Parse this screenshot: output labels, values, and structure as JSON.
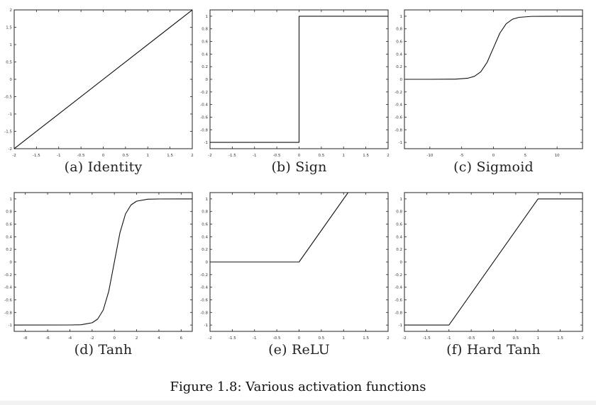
{
  "figure_caption": "Figure 1.8: Various activation functions",
  "chart_data": [
    {
      "type": "line",
      "caption": "(a) Identity",
      "function": "identity",
      "xlim": [
        -2,
        2
      ],
      "ylim": [
        -2,
        2
      ],
      "xticks": [
        -2,
        -1.5,
        -1,
        -0.5,
        0,
        0.5,
        1,
        1.5,
        2
      ],
      "yticks": [
        -2,
        -1.5,
        -1,
        -0.5,
        0,
        0.5,
        1,
        1.5,
        2
      ],
      "xtick_labels": [
        "-2",
        "-1.5",
        "-1",
        "-0.5",
        "0",
        "0.5",
        "1",
        "1.5",
        "2"
      ],
      "ytick_labels": [
        "-2",
        "-1.5",
        "-1",
        "-0.5",
        "0",
        "0.5",
        "1",
        "1.5",
        "2"
      ],
      "grid": false,
      "series": [
        {
          "x": [
            -2,
            2
          ],
          "y": [
            -2,
            2
          ]
        }
      ]
    },
    {
      "type": "line",
      "caption": "(b) Sign",
      "function": "sign",
      "xlim": [
        -2,
        2
      ],
      "ylim": [
        -1.1,
        1.1
      ],
      "xticks": [
        -2,
        -1.5,
        -1,
        -0.5,
        0,
        0.5,
        1,
        1.5,
        2
      ],
      "yticks": [
        -1,
        -0.8,
        -0.6,
        -0.4,
        -0.2,
        0,
        0.2,
        0.4,
        0.6,
        0.8,
        1
      ],
      "xtick_labels": [
        "-2",
        "-1.5",
        "-1",
        "-0.5",
        "0",
        "0.5",
        "1",
        "1.5",
        "2"
      ],
      "ytick_labels": [
        "-1",
        "-0.8",
        "-0.6",
        "-0.4",
        "-0.2",
        "0",
        "0.2",
        "0.4",
        "0.6",
        "0.8",
        "1"
      ],
      "grid": false,
      "series": [
        {
          "x": [
            -2,
            0,
            0,
            2
          ],
          "y": [
            -1,
            -1,
            1,
            1
          ]
        }
      ]
    },
    {
      "type": "line",
      "caption": "(c) Sigmoid",
      "function": "sigmoid",
      "xlim": [
        -14,
        14
      ],
      "ylim": [
        -1.1,
        1.1
      ],
      "xticks": [
        -10,
        -5,
        0,
        5,
        10
      ],
      "yticks": [
        -1,
        -0.8,
        -0.6,
        -0.4,
        -0.2,
        0,
        0.2,
        0.4,
        0.6,
        0.8,
        1
      ],
      "xtick_labels": [
        "-10",
        "-5",
        "0",
        "5",
        "10"
      ],
      "ytick_labels": [
        "-1",
        "-0.8",
        "-0.6",
        "-0.4",
        "-0.2",
        "0",
        "0.2",
        "0.4",
        "0.6",
        "0.8",
        "1"
      ],
      "grid": false,
      "series": [
        {
          "x": [
            -14,
            -10,
            -6,
            -4,
            -3,
            -2,
            -1,
            0,
            1,
            2,
            3,
            4,
            6,
            10,
            14
          ],
          "y": [
            0,
            4.54e-05,
            0.00247,
            0.018,
            0.047,
            0.119,
            0.269,
            0.5,
            0.731,
            0.881,
            0.953,
            0.982,
            0.9975,
            0.99995,
            1
          ]
        }
      ]
    },
    {
      "type": "line",
      "caption": "(d) Tanh",
      "function": "tanh",
      "xlim": [
        -9,
        7
      ],
      "ylim": [
        -1.1,
        1.1
      ],
      "xticks": [
        -8,
        -6,
        -4,
        -2,
        0,
        2,
        4,
        6
      ],
      "yticks": [
        -1,
        -0.8,
        -0.6,
        -0.4,
        -0.2,
        0,
        0.2,
        0.4,
        0.6,
        0.8,
        1
      ],
      "xtick_labels": [
        "-8",
        "-6",
        "-4",
        "-2",
        "0",
        "2",
        "4",
        "6"
      ],
      "ytick_labels": [
        "-1",
        "-0.8",
        "-0.6",
        "-0.4",
        "-0.2",
        "0",
        "0.2",
        "0.4",
        "0.6",
        "0.8",
        "1"
      ],
      "grid": false,
      "series": [
        {
          "x": [
            -9,
            -4,
            -3,
            -2,
            -1.5,
            -1,
            -0.5,
            0,
            0.5,
            1,
            1.5,
            2,
            3,
            4,
            7
          ],
          "y": [
            -1,
            -0.999,
            -0.995,
            -0.964,
            -0.905,
            -0.762,
            -0.462,
            0,
            0.462,
            0.762,
            0.905,
            0.964,
            0.995,
            0.999,
            1
          ]
        }
      ]
    },
    {
      "type": "line",
      "caption": "(e) ReLU",
      "function": "relu",
      "xlim": [
        -2,
        2
      ],
      "ylim": [
        -1.1,
        1.1
      ],
      "xticks": [
        -2,
        -1.5,
        -1,
        -0.5,
        0,
        0.5,
        1,
        1.5,
        2
      ],
      "yticks": [
        -1,
        -0.8,
        -0.6,
        -0.4,
        -0.2,
        0,
        0.2,
        0.4,
        0.6,
        0.8,
        1
      ],
      "xtick_labels": [
        "-2",
        "-1.5",
        "-1",
        "-0.5",
        "0",
        "0.5",
        "1",
        "1.5",
        "2"
      ],
      "ytick_labels": [
        "-1",
        "-0.8",
        "-0.6",
        "-0.4",
        "-0.2",
        "0",
        "0.2",
        "0.4",
        "0.6",
        "0.8",
        "1"
      ],
      "grid": false,
      "series": [
        {
          "x": [
            -2,
            0,
            1.1
          ],
          "y": [
            0,
            0,
            1.1
          ]
        }
      ]
    },
    {
      "type": "line",
      "caption": "(f) Hard Tanh",
      "function": "hardtanh",
      "xlim": [
        -2,
        2
      ],
      "ylim": [
        -1.1,
        1.1
      ],
      "xticks": [
        -2,
        -1.5,
        -1,
        -0.5,
        0,
        0.5,
        1,
        1.5,
        2
      ],
      "yticks": [
        -1,
        -0.8,
        -0.6,
        -0.4,
        -0.2,
        0,
        0.2,
        0.4,
        0.6,
        0.8,
        1
      ],
      "xtick_labels": [
        "-2",
        "-1.5",
        "-1",
        "-0.5",
        "0",
        "0.5",
        "1",
        "1.5",
        "2"
      ],
      "ytick_labels": [
        "-1",
        "-0.8",
        "-0.6",
        "-0.4",
        "-0.2",
        "0",
        "0.2",
        "0.4",
        "0.6",
        "0.8",
        "1"
      ],
      "grid": false,
      "series": [
        {
          "x": [
            -2,
            -1,
            1,
            2
          ],
          "y": [
            -1,
            -1,
            1,
            1
          ]
        }
      ]
    }
  ]
}
